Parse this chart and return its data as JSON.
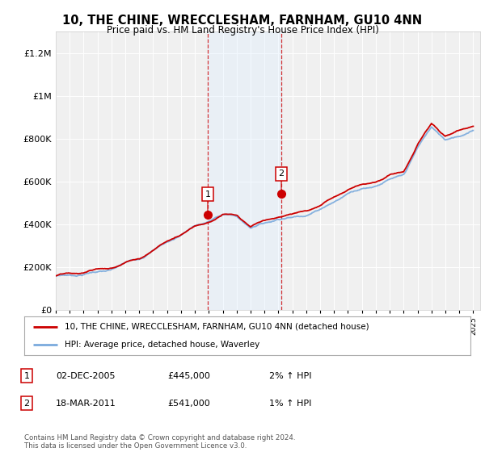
{
  "title": "10, THE CHINE, WRECCLESHAM, FARNHAM, GU10 4NN",
  "subtitle": "Price paid vs. HM Land Registry's House Price Index (HPI)",
  "legend_line1": "10, THE CHINE, WRECCLESHAM, FARNHAM, GU10 4NN (detached house)",
  "legend_line2": "HPI: Average price, detached house, Waverley",
  "annotation1_label": "1",
  "annotation1_date": "02-DEC-2005",
  "annotation1_price": "£445,000",
  "annotation1_hpi": "2% ↑ HPI",
  "annotation2_label": "2",
  "annotation2_date": "18-MAR-2011",
  "annotation2_price": "£541,000",
  "annotation2_hpi": "1% ↑ HPI",
  "footer": "Contains HM Land Registry data © Crown copyright and database right 2024.\nThis data is licensed under the Open Government Licence v3.0.",
  "sale1_year": 2005.92,
  "sale1_value": 445000,
  "sale2_year": 2011.21,
  "sale2_value": 541000,
  "hpi_color": "#7aaadd",
  "price_color": "#cc0000",
  "shade_color": "#ddeeff",
  "background_color": "#ffffff",
  "plot_bg_color": "#f0f0f0",
  "ylim_min": 0,
  "ylim_max": 1300000,
  "xmin": 1995,
  "xmax": 2025.5,
  "yticks": [
    0,
    200000,
    400000,
    600000,
    800000,
    1000000,
    1200000
  ]
}
